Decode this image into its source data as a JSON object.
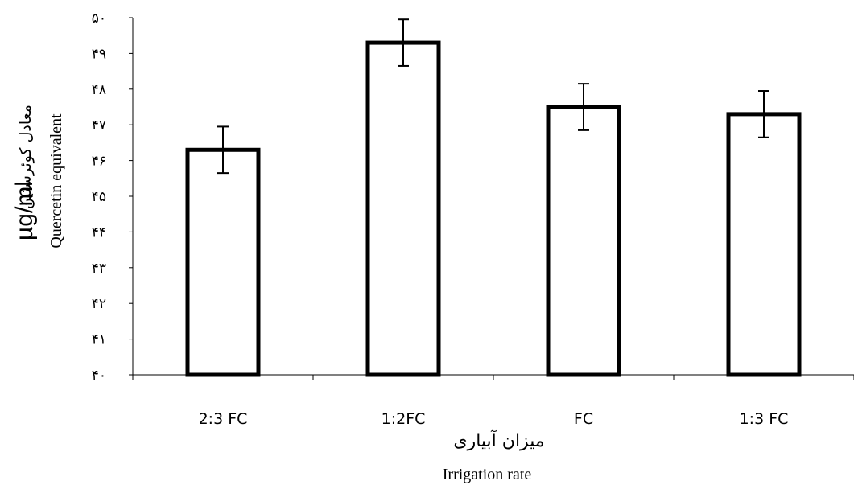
{
  "chart_data": {
    "type": "bar",
    "categories": [
      "2:3 FC",
      "1:2FC",
      "FC",
      "1:3 FC"
    ],
    "values": [
      46.3,
      49.3,
      47.5,
      47.3
    ],
    "errors": [
      0.65,
      0.65,
      0.65,
      0.65
    ],
    "ylim": [
      40,
      50
    ],
    "yticks": [
      40,
      41,
      42,
      43,
      44,
      45,
      46,
      47,
      48,
      49,
      50
    ],
    "ytick_labels": [
      "۴۰",
      "۴۱",
      "۴۲",
      "۴۳",
      "۴۴",
      "۴۵",
      "۴۶",
      "۴۷",
      "۴۸",
      "۴۹",
      "۵۰"
    ],
    "xlabel_fa": "میزان آبیاری",
    "xlabel": "Irrigation rate",
    "ylabel_unit": "µg/ml",
    "ylabel": "Quercetin equivalent",
    "ylabel_fa": "معادل کوئرستین",
    "grid": false,
    "bar_fill": "#ffffff",
    "bar_stroke": "#000000"
  }
}
